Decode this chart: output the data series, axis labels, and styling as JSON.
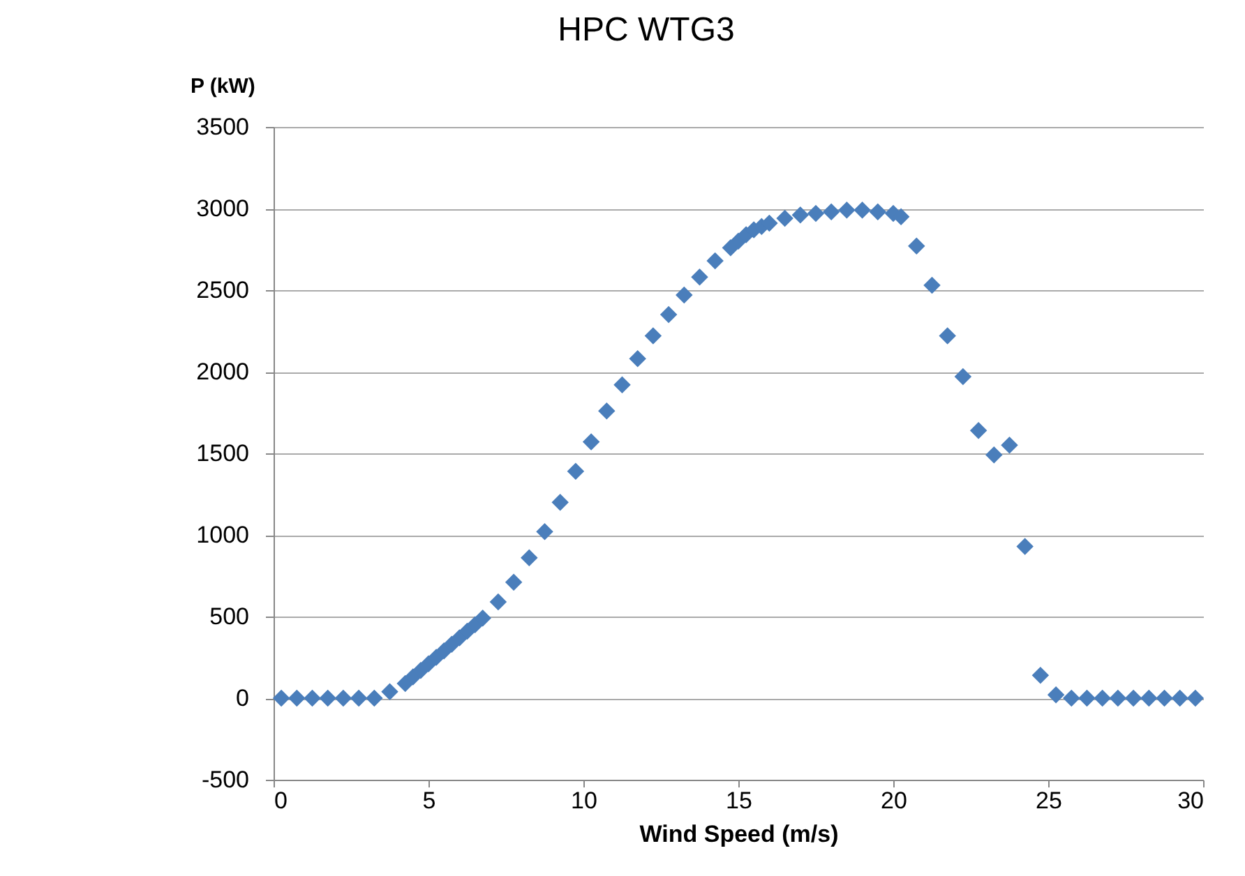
{
  "chart_data": {
    "type": "scatter",
    "title": "HPC WTG3",
    "xlabel": "Wind Speed (m/s)",
    "ylabel": "P (kW)",
    "x": [
      0.25,
      0.75,
      1.25,
      1.75,
      2.25,
      2.75,
      3.25,
      3.75,
      4.25,
      4.5,
      4.75,
      5,
      5.25,
      5.5,
      5.75,
      6,
      6.25,
      6.5,
      6.75,
      7.25,
      7.75,
      8.25,
      8.75,
      9.25,
      9.75,
      10.25,
      10.75,
      11.25,
      11.75,
      12.25,
      12.75,
      13.25,
      13.75,
      14.25,
      14.75,
      15,
      15.25,
      15.5,
      15.75,
      16,
      16.5,
      17,
      17.5,
      18,
      18.5,
      19,
      19.5,
      20,
      20.25,
      20.75,
      21.25,
      21.75,
      22.25,
      22.75,
      23.25,
      23.75,
      24.25,
      24.75,
      25.25,
      25.75,
      26.25,
      26.75,
      27.25,
      27.75,
      28.25,
      28.75,
      29.25,
      29.75
    ],
    "series": [
      {
        "color": "#4a7ebb",
        "values": [
          0,
          0,
          0,
          0,
          0,
          0,
          0,
          40,
          90,
          130,
          170,
          210,
          250,
          290,
          330,
          370,
          410,
          450,
          490,
          590,
          710,
          860,
          1020,
          1200,
          1390,
          1570,
          1760,
          1920,
          2080,
          2220,
          2350,
          2470,
          2580,
          2680,
          2760,
          2800,
          2840,
          2870,
          2890,
          2910,
          2940,
          2960,
          2970,
          2980,
          2990,
          2990,
          2980,
          2970,
          2950,
          2770,
          2530,
          2220,
          1970,
          1640,
          1490,
          1550,
          930,
          140,
          20,
          0,
          0,
          0,
          0,
          0,
          0,
          0,
          0,
          0
        ]
      }
    ],
    "xlim": [
      0,
      30
    ],
    "xticks": [
      0,
      5,
      10,
      15,
      20,
      25,
      30
    ],
    "ylim": [
      -500,
      3500
    ],
    "yticks": [
      -500,
      0,
      500,
      1000,
      1500,
      2000,
      2500,
      3000,
      3500
    ],
    "grid": "y",
    "marker": "diamond"
  }
}
